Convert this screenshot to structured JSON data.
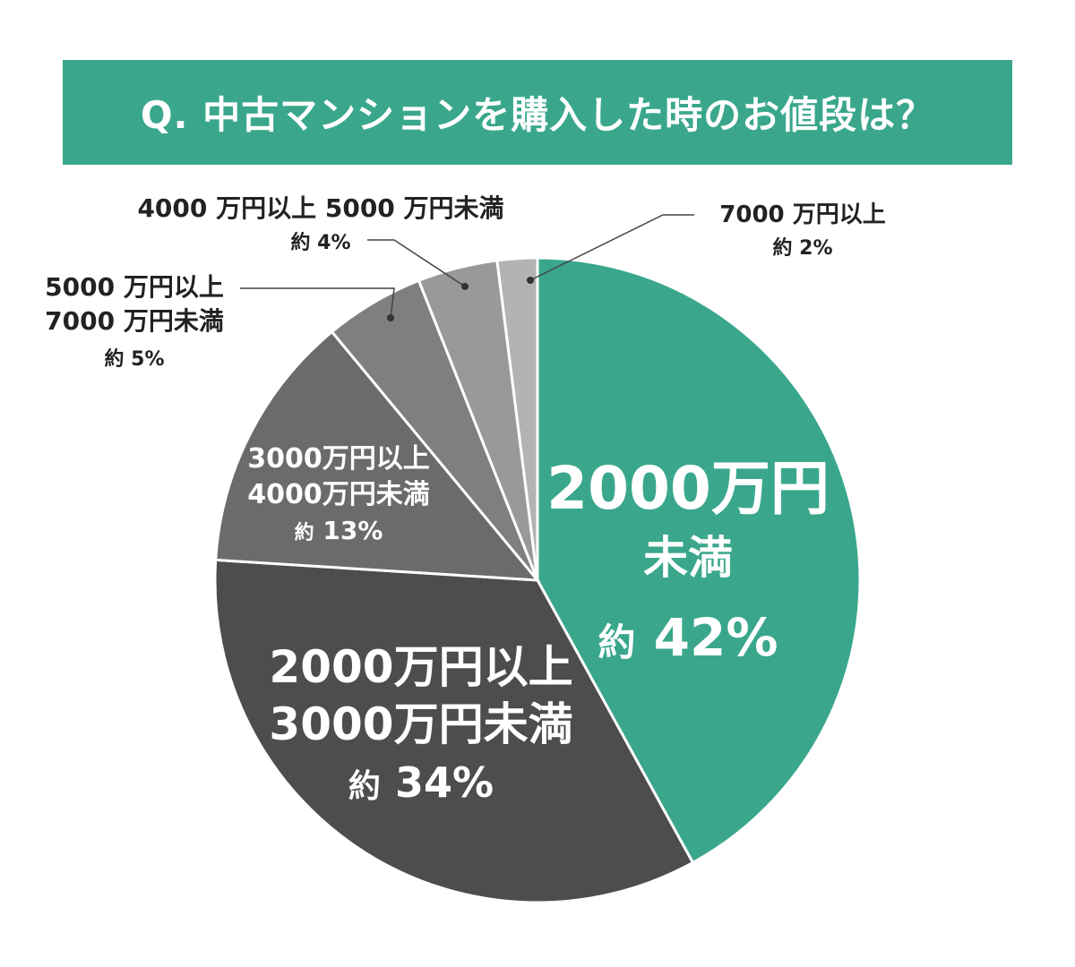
{
  "title": "Q. 中古マンションを購入した時のお値段は？",
  "chart_data": {
    "type": "pie",
    "start": "12 o'clock, clockwise",
    "slices": [
      {
        "lines": [
          "2000万円",
          "未満",
          "約 42%"
        ],
        "value": 42,
        "color": "#3aa78c",
        "text_color": "#ffffff",
        "label_position": "inside"
      },
      {
        "lines": [
          "2000万円以上",
          "3000万円未満",
          "約 34%"
        ],
        "value": 34,
        "color": "#4d4d4d",
        "text_color": "#ffffff",
        "label_position": "inside"
      },
      {
        "lines": [
          "3000万円以上",
          "4000万円未満",
          "約 13%"
        ],
        "value": 13,
        "color": "#6b6b6b",
        "text_color": "#ffffff",
        "label_position": "inside"
      },
      {
        "lines": [
          "5000 万円以上",
          "7000 万円未満",
          "約 5%"
        ],
        "value": 5,
        "color": "#7f7f7f",
        "text_color": "#222222",
        "label_position": "outside"
      },
      {
        "lines": [
          "4000 万円以上 5000 万円未満",
          "約 4%"
        ],
        "value": 4,
        "color": "#999999",
        "text_color": "#222222",
        "label_position": "outside"
      },
      {
        "lines": [
          "7000 万円以上",
          "約 2%"
        ],
        "value": 2,
        "color": "#b3b3b3",
        "text_color": "#222222",
        "label_position": "outside"
      }
    ]
  }
}
